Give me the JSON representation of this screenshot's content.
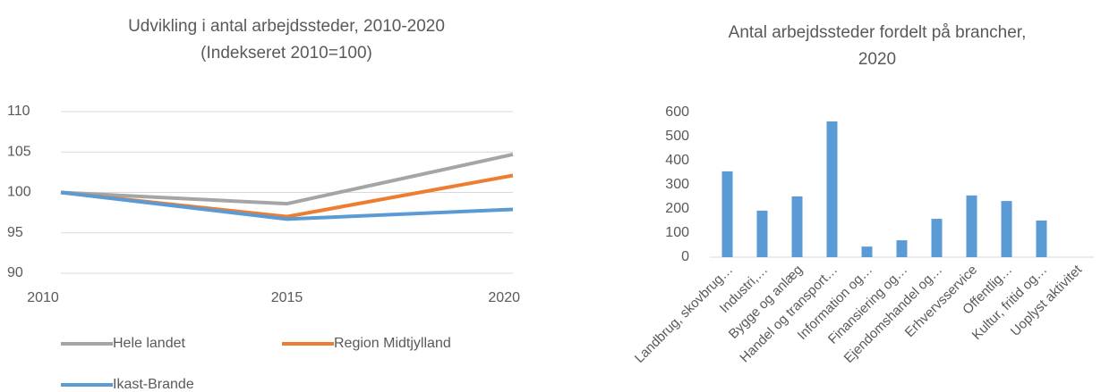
{
  "chart_data": [
    {
      "type": "line",
      "title": "Udvikling i antal arbejdssteder, 2010-2020",
      "subtitle": "(Indekseret 2010=100)",
      "x": [
        2010,
        2015,
        2020
      ],
      "xlim": [
        2010,
        2020
      ],
      "xticks": [
        2010,
        2015,
        2020
      ],
      "ylim": [
        90,
        110
      ],
      "yticks": [
        90,
        95,
        100,
        105,
        110
      ],
      "grid": true,
      "series": [
        {
          "name": "Hele landet",
          "color": "#a5a5a5",
          "values": [
            100,
            98.6,
            104.7
          ]
        },
        {
          "name": "Region Midtjylland",
          "color": "#ed7d31",
          "values": [
            100,
            97,
            102.1
          ]
        },
        {
          "name": "Ikast-Brande",
          "color": "#5b9bd5",
          "values": [
            100,
            96.7,
            97.9
          ]
        }
      ]
    },
    {
      "type": "bar",
      "title_lines": [
        "Antal arbejdssteder fordelt på brancher,",
        "2020"
      ],
      "categories": [
        "Landbrug, skovbrug…",
        "Industri,…",
        "Bygge og anlæg",
        "Handel og transport…",
        "Information og…",
        "Finansiering og…",
        "Ejendomshandel og…",
        "Erhvervsservice",
        "Offentlig…",
        "Kultur, fritid og…",
        "Uoplyst aktivitet"
      ],
      "values": [
        356,
        193,
        252,
        563,
        44,
        70,
        159,
        256,
        233,
        152,
        0
      ],
      "color": "#5b9bd5",
      "ylim": [
        0,
        600
      ],
      "yticks": [
        0,
        100,
        200,
        300,
        400,
        500,
        600
      ],
      "grid": false
    }
  ]
}
